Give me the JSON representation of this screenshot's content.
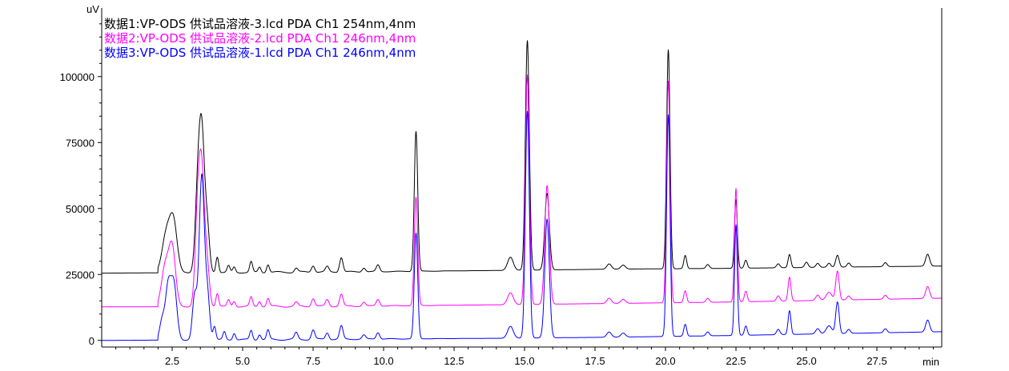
{
  "chart_data": {
    "type": "line",
    "title": "",
    "xlabel": "min",
    "ylabel": "uV",
    "xlim": [
      0,
      29.8
    ],
    "ylim": [
      -2500,
      126000
    ],
    "x_ticks": [
      2.5,
      5.0,
      7.5,
      10.0,
      12.5,
      15.0,
      17.5,
      20.0,
      22.5,
      25.0,
      27.5
    ],
    "x_tick_labels": [
      "2.5",
      "5.0",
      "7.5",
      "10.0",
      "12.5",
      "15.0",
      "17.5",
      "20.0",
      "22.5",
      "25.0",
      "27.5"
    ],
    "y_ticks": [
      0,
      25000,
      50000,
      75000,
      100000
    ],
    "y_tick_labels": [
      "0",
      "25000",
      "50000",
      "75000",
      "100000"
    ],
    "grid": false,
    "legend_position": "top-left",
    "series": [
      {
        "name": "数据1:VP-ODS 供试品溶液-3.lcd PDA Ch1 254nm,4nm",
        "color": "#000000",
        "baseline": [
          [
            0,
            25500
          ],
          [
            9,
            26000
          ],
          [
            14,
            26500
          ],
          [
            18,
            27000
          ],
          [
            22,
            27300
          ],
          [
            29.8,
            28200
          ]
        ],
        "peaks": [
          [
            2.3,
            15000,
            0.15
          ],
          [
            2.55,
            18000,
            0.13
          ],
          [
            3.4,
            25000,
            0.09
          ],
          [
            3.55,
            52000,
            0.1
          ],
          [
            3.75,
            15000,
            0.08
          ],
          [
            4.1,
            6000,
            0.05
          ],
          [
            4.5,
            2500,
            0.05
          ],
          [
            4.7,
            2000,
            0.05
          ],
          [
            5.3,
            4000,
            0.05
          ],
          [
            5.6,
            2000,
            0.05
          ],
          [
            5.9,
            3000,
            0.05
          ],
          [
            6.9,
            1500,
            0.06
          ],
          [
            7.5,
            2500,
            0.06
          ],
          [
            8.0,
            2000,
            0.06
          ],
          [
            8.5,
            5500,
            0.06
          ],
          [
            9.3,
            1500,
            0.06
          ],
          [
            9.8,
            2500,
            0.06
          ],
          [
            11.15,
            53000,
            0.06
          ],
          [
            14.5,
            5000,
            0.1
          ],
          [
            15.1,
            87000,
            0.07
          ],
          [
            15.8,
            29000,
            0.08
          ],
          [
            18.0,
            2000,
            0.08
          ],
          [
            18.5,
            1500,
            0.08
          ],
          [
            20.1,
            83000,
            0.06
          ],
          [
            20.7,
            5000,
            0.05
          ],
          [
            21.5,
            1500,
            0.06
          ],
          [
            22.5,
            26000,
            0.05
          ],
          [
            22.85,
            3000,
            0.05
          ],
          [
            24.0,
            1500,
            0.06
          ],
          [
            24.4,
            5000,
            0.05
          ],
          [
            25.0,
            2000,
            0.06
          ],
          [
            25.4,
            1500,
            0.06
          ],
          [
            25.8,
            1500,
            0.06
          ],
          [
            26.1,
            4500,
            0.06
          ],
          [
            26.5,
            1500,
            0.06
          ],
          [
            27.8,
            1500,
            0.06
          ],
          [
            29.3,
            4500,
            0.07
          ]
        ]
      },
      {
        "name": "数据2:VP-ODS 供试品溶液-2.lcd PDA Ch1 246nm,4nm",
        "color": "#ff00ff",
        "baseline": [
          [
            0,
            12700
          ],
          [
            9,
            13000
          ],
          [
            14,
            13500
          ],
          [
            18,
            14000
          ],
          [
            22,
            14500
          ],
          [
            29.8,
            16000
          ]
        ],
        "peaks": [
          [
            2.25,
            15000,
            0.13
          ],
          [
            2.5,
            22000,
            0.12
          ],
          [
            3.4,
            30000,
            0.09
          ],
          [
            3.55,
            49000,
            0.1
          ],
          [
            3.75,
            13000,
            0.08
          ],
          [
            4.1,
            5000,
            0.05
          ],
          [
            4.5,
            2500,
            0.05
          ],
          [
            4.7,
            2000,
            0.05
          ],
          [
            5.3,
            3500,
            0.05
          ],
          [
            5.6,
            2000,
            0.05
          ],
          [
            5.9,
            3000,
            0.05
          ],
          [
            6.9,
            1500,
            0.06
          ],
          [
            7.5,
            3000,
            0.06
          ],
          [
            8.0,
            2500,
            0.06
          ],
          [
            8.5,
            4500,
            0.06
          ],
          [
            9.3,
            1500,
            0.06
          ],
          [
            9.8,
            2500,
            0.06
          ],
          [
            11.15,
            41000,
            0.06
          ],
          [
            14.5,
            4500,
            0.1
          ],
          [
            15.1,
            87000,
            0.07
          ],
          [
            15.8,
            45000,
            0.08
          ],
          [
            18.0,
            2000,
            0.08
          ],
          [
            18.5,
            1500,
            0.08
          ],
          [
            20.1,
            84000,
            0.06
          ],
          [
            20.7,
            4500,
            0.05
          ],
          [
            21.5,
            1500,
            0.06
          ],
          [
            22.5,
            43000,
            0.05
          ],
          [
            22.85,
            4000,
            0.05
          ],
          [
            24.0,
            2000,
            0.06
          ],
          [
            24.4,
            9000,
            0.05
          ],
          [
            25.4,
            2000,
            0.07
          ],
          [
            25.8,
            3000,
            0.1
          ],
          [
            26.1,
            11000,
            0.06
          ],
          [
            26.5,
            1500,
            0.06
          ],
          [
            27.8,
            1500,
            0.06
          ],
          [
            29.3,
            4500,
            0.07
          ]
        ]
      },
      {
        "name": "数据3:VP-ODS 供试品溶液-1.lcd PDA Ch1 246nm,4nm",
        "color": "#0000ff",
        "baseline": [
          [
            0,
            0
          ],
          [
            9,
            500
          ],
          [
            14,
            800
          ],
          [
            18,
            1200
          ],
          [
            22,
            1800
          ],
          [
            29.8,
            3300
          ]
        ],
        "peaks": [
          [
            2.15,
            8000,
            0.09
          ],
          [
            2.35,
            18000,
            0.09
          ],
          [
            2.55,
            22000,
            0.11
          ],
          [
            3.3,
            17000,
            0.08
          ],
          [
            3.55,
            62000,
            0.09
          ],
          [
            3.75,
            17000,
            0.08
          ],
          [
            4.0,
            5000,
            0.05
          ],
          [
            4.35,
            3000,
            0.05
          ],
          [
            4.7,
            2500,
            0.05
          ],
          [
            5.3,
            3500,
            0.05
          ],
          [
            5.6,
            2000,
            0.05
          ],
          [
            5.9,
            3500,
            0.05
          ],
          [
            6.9,
            2500,
            0.06
          ],
          [
            7.5,
            3500,
            0.06
          ],
          [
            8.0,
            2500,
            0.06
          ],
          [
            8.5,
            5000,
            0.06
          ],
          [
            9.3,
            1500,
            0.06
          ],
          [
            9.8,
            2500,
            0.06
          ],
          [
            11.15,
            40000,
            0.06
          ],
          [
            14.5,
            4500,
            0.1
          ],
          [
            15.1,
            86000,
            0.07
          ],
          [
            15.8,
            45000,
            0.08
          ],
          [
            18.0,
            2000,
            0.08
          ],
          [
            18.5,
            1500,
            0.08
          ],
          [
            20.1,
            84000,
            0.06
          ],
          [
            20.7,
            4500,
            0.05
          ],
          [
            21.5,
            1500,
            0.06
          ],
          [
            22.5,
            42000,
            0.05
          ],
          [
            22.85,
            3500,
            0.05
          ],
          [
            24.0,
            2000,
            0.06
          ],
          [
            24.4,
            9000,
            0.05
          ],
          [
            25.4,
            2000,
            0.07
          ],
          [
            25.8,
            3000,
            0.1
          ],
          [
            26.1,
            12000,
            0.06
          ],
          [
            26.5,
            1500,
            0.06
          ],
          [
            27.8,
            1500,
            0.06
          ],
          [
            29.3,
            4500,
            0.07
          ]
        ]
      }
    ]
  }
}
